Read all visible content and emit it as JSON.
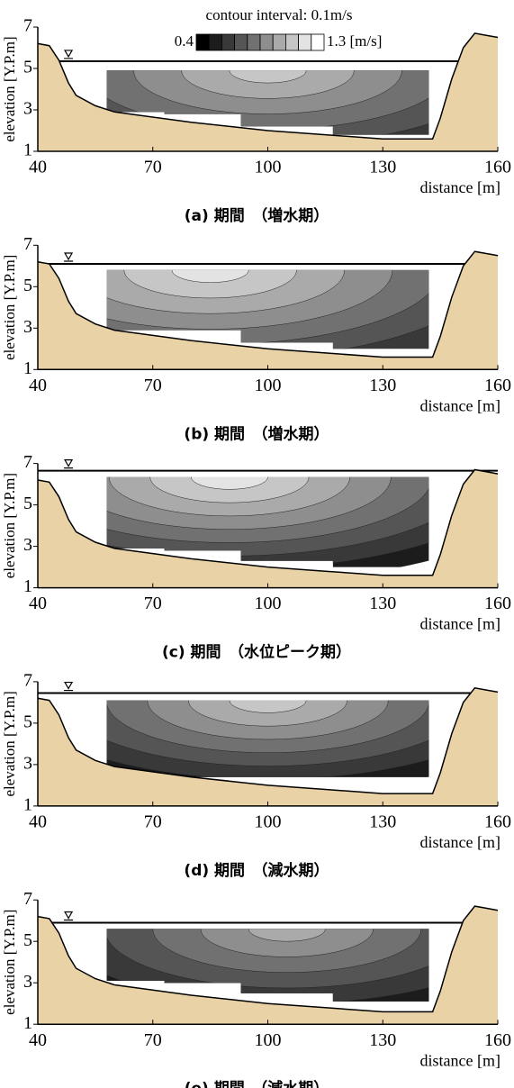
{
  "chart_data": [
    {
      "type": "contour",
      "caption": "(a) 期間　（増水期）",
      "xlabel": "distance [m]",
      "ylabel": "elevation [Y.P.m]",
      "xlim": [
        40,
        160
      ],
      "ylim": [
        1,
        7
      ],
      "xticks": [
        40,
        70,
        100,
        130,
        160
      ],
      "yticks": [
        1,
        3,
        5,
        7
      ],
      "water_level": 5.35,
      "measured_top": 4.9,
      "measured_x": [
        58,
        142
      ],
      "bottom_steps": {
        "x": [
          58,
          73,
          93,
          117,
          142
        ],
        "y": [
          2.9,
          2.8,
          2.2,
          1.8
        ]
      },
      "bed": {
        "x": [
          40,
          43,
          45.5,
          48,
          50,
          55,
          60,
          80,
          100,
          115,
          130,
          143,
          145,
          148,
          151,
          154,
          157,
          160
        ],
        "y": [
          6.2,
          6.1,
          5.4,
          4.3,
          3.7,
          3.2,
          2.9,
          2.4,
          2.0,
          1.8,
          1.6,
          1.6,
          2.6,
          4.5,
          6.0,
          6.7,
          6.6,
          6.5
        ]
      },
      "levels": [
        0.5,
        0.6,
        0.7,
        0.8,
        0.9,
        1.0,
        1.1
      ],
      "core_x": 100,
      "colormap": "gray",
      "colorbar": {
        "title": "contour interval: 0.1m/s",
        "levels": [
          0.4,
          0.5,
          0.6,
          0.7,
          0.8,
          0.9,
          1.0,
          1.1,
          1.2,
          1.3
        ],
        "ticks": [
          0.4,
          {
            "value": 1.3,
            "label": "1.3 [m/s]"
          }
        ]
      }
    },
    {
      "type": "contour",
      "caption": "(b) 期間　（増水期）",
      "xlabel": "distance [m]",
      "ylabel": "elevation [Y.P.m]",
      "xlim": [
        40,
        160
      ],
      "ylim": [
        1,
        7
      ],
      "xticks": [
        40,
        70,
        100,
        130,
        160
      ],
      "yticks": [
        1,
        3,
        5,
        7
      ],
      "water_level": 6.1,
      "measured_top": 5.8,
      "measured_x": [
        58,
        142
      ],
      "bottom_steps": {
        "x": [
          58,
          73,
          93,
          117,
          142
        ],
        "y": [
          2.9,
          2.9,
          2.3,
          2.0
        ]
      },
      "bed": {
        "x": [
          40,
          43,
          45.5,
          48,
          50,
          55,
          60,
          80,
          100,
          115,
          130,
          143,
          145,
          148,
          151,
          154,
          157,
          160
        ],
        "y": [
          6.2,
          6.1,
          5.4,
          4.3,
          3.7,
          3.2,
          2.9,
          2.4,
          2.0,
          1.8,
          1.6,
          1.6,
          2.6,
          4.5,
          6.0,
          6.7,
          6.6,
          6.5
        ]
      },
      "levels": [
        0.6,
        0.7,
        0.8,
        0.9,
        1.0,
        1.1,
        1.2
      ],
      "core_x": 85,
      "colormap": "gray"
    },
    {
      "type": "contour",
      "caption": "(c) 期間　（水位ピーク期）",
      "xlabel": "distance [m]",
      "ylabel": "elevation [Y.P.m]",
      "xlim": [
        40,
        160
      ],
      "ylim": [
        1,
        7
      ],
      "xticks": [
        40,
        70,
        100,
        130,
        160
      ],
      "yticks": [
        1,
        3,
        5,
        7
      ],
      "water_level": 6.65,
      "measured_top": 6.35,
      "measured_x": [
        58,
        142
      ],
      "bottom_steps": {
        "x": [
          58,
          73,
          93,
          117,
          142
        ],
        "y": [
          2.9,
          2.8,
          2.3,
          2.0
        ]
      },
      "bed": {
        "x": [
          40,
          43,
          45.5,
          48,
          50,
          55,
          60,
          80,
          100,
          115,
          130,
          143,
          145,
          148,
          151,
          154,
          157,
          160
        ],
        "y": [
          6.2,
          6.1,
          5.4,
          4.3,
          3.7,
          3.2,
          2.9,
          2.4,
          2.0,
          1.8,
          1.6,
          1.6,
          2.6,
          4.5,
          6.0,
          6.7,
          6.6,
          6.5
        ]
      },
      "levels": [
        0.5,
        0.6,
        0.7,
        0.8,
        0.9,
        1.0,
        1.1,
        1.2
      ],
      "core_x": 90,
      "colormap": "gray"
    },
    {
      "type": "contour",
      "caption": "(d) 期間　（減水期）",
      "xlabel": "distance [m]",
      "ylabel": "elevation [Y.P.m]",
      "xlim": [
        40,
        160
      ],
      "ylim": [
        1,
        7
      ],
      "xticks": [
        40,
        70,
        100,
        130,
        160
      ],
      "yticks": [
        1,
        3,
        5,
        7
      ],
      "water_level": 6.45,
      "measured_top": 6.1,
      "measured_x": [
        58,
        142
      ],
      "bottom_steps": {
        "x": [
          58,
          73,
          93,
          117,
          142
        ],
        "y": [
          2.4,
          2.4,
          2.4,
          2.4
        ]
      },
      "bed": {
        "x": [
          40,
          43,
          45.5,
          48,
          50,
          55,
          60,
          80,
          100,
          115,
          130,
          143,
          145,
          148,
          151,
          154,
          157,
          160
        ],
        "y": [
          6.2,
          6.1,
          5.4,
          4.3,
          3.7,
          3.2,
          2.9,
          2.4,
          2.0,
          1.8,
          1.6,
          1.6,
          2.6,
          4.5,
          6.0,
          6.7,
          6.6,
          6.5
        ]
      },
      "levels": [
        0.4,
        0.5,
        0.6,
        0.7,
        0.8,
        0.9,
        1.0,
        1.1
      ],
      "core_x": 100,
      "colormap": "gray"
    },
    {
      "type": "contour",
      "caption": "(e) 期間　（減水期）",
      "xlabel": "distance [m]",
      "ylabel": "elevation [Y.P.m]",
      "xlim": [
        40,
        160
      ],
      "ylim": [
        1,
        7
      ],
      "xticks": [
        40,
        70,
        100,
        130,
        160
      ],
      "yticks": [
        1,
        3,
        5,
        7
      ],
      "water_level": 5.9,
      "measured_top": 5.6,
      "measured_x": [
        58,
        142
      ],
      "bottom_steps": {
        "x": [
          58,
          73,
          93,
          117,
          142
        ],
        "y": [
          3.1,
          3.0,
          2.5,
          2.1
        ]
      },
      "bed": {
        "x": [
          40,
          43,
          45.5,
          48,
          50,
          55,
          60,
          80,
          100,
          115,
          130,
          143,
          145,
          148,
          151,
          154,
          157,
          160
        ],
        "y": [
          6.2,
          6.1,
          5.4,
          4.3,
          3.7,
          3.2,
          2.9,
          2.4,
          2.0,
          1.8,
          1.6,
          1.6,
          2.6,
          4.5,
          6.0,
          6.7,
          6.6,
          6.5
        ]
      },
      "levels": [
        0.4,
        0.5,
        0.6,
        0.7,
        0.8,
        0.9,
        1.0
      ],
      "core_x": 105,
      "colormap": "gray"
    }
  ]
}
